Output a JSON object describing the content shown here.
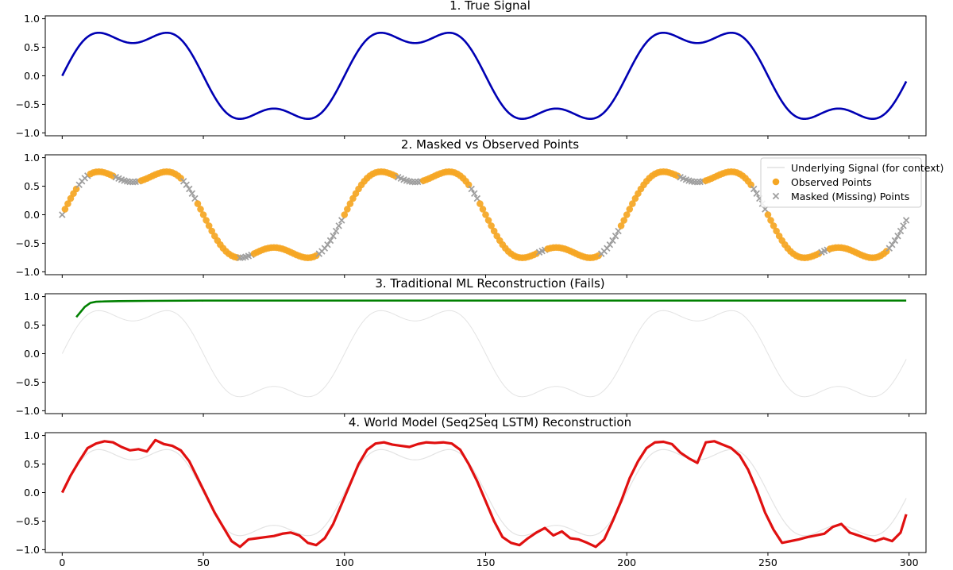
{
  "chart_data": [
    {
      "type": "line",
      "title": "1. True Signal",
      "xlim": [
        -6,
        306
      ],
      "ylim": [
        -1.05,
        1.05
      ],
      "y_ticks": [
        1.0,
        0.5,
        0.0,
        -0.5,
        -1.0
      ],
      "y_tick_labels": [
        "1.0",
        "0.5",
        "0.0",
        "−0.5",
        "−1.0"
      ],
      "signal": "sin(2*pi*x/100) + 0.3*sin(6*pi*x/100), normalized to peak 0.92",
      "series": [
        {
          "color": "#0000b3",
          "x_range": [
            0,
            299
          ],
          "kind": "true-signal"
        }
      ],
      "key_points": [
        [
          0,
          0.0
        ],
        [
          12,
          0.92
        ],
        [
          25,
          0.71
        ],
        [
          37,
          0.92
        ],
        [
          62,
          -0.92
        ],
        [
          75,
          -0.71
        ],
        [
          87,
          -0.92
        ],
        [
          112,
          0.92
        ],
        [
          125,
          0.71
        ],
        [
          137,
          0.92
        ],
        [
          162,
          -0.92
        ],
        [
          175,
          -0.71
        ],
        [
          187,
          -0.92
        ],
        [
          212,
          0.92
        ],
        [
          225,
          0.71
        ],
        [
          237,
          0.92
        ],
        [
          262,
          -0.92
        ],
        [
          275,
          -0.71
        ],
        [
          287,
          -0.92
        ],
        [
          299,
          0.0
        ]
      ]
    },
    {
      "type": "scatter",
      "title": "2. Masked vs Observed Points",
      "xlim": [
        -6,
        306
      ],
      "ylim": [
        -1.05,
        1.05
      ],
      "y_ticks": [
        1.0,
        0.5,
        0.0,
        -0.5,
        -1.0
      ],
      "y_tick_labels": [
        "1.0",
        "0.5",
        "0.0",
        "−0.5",
        "−1.0"
      ],
      "series": [
        {
          "name": "Underlying Signal (for context)",
          "color": "#d9d9d9",
          "kind": "line"
        },
        {
          "name": "Observed Points",
          "color": "#f5a623",
          "kind": "observed"
        },
        {
          "name": "Masked (Missing) Points",
          "color": "#9e9e9e",
          "kind": "masked"
        }
      ],
      "observed_x_ranges": [
        [
          1,
          5
        ],
        [
          10,
          18
        ],
        [
          28,
          42
        ],
        [
          48,
          62
        ],
        [
          68,
          90
        ],
        [
          100,
          118
        ],
        [
          128,
          144
        ],
        [
          148,
          168
        ],
        [
          172,
          190
        ],
        [
          198,
          218
        ],
        [
          228,
          244
        ],
        [
          250,
          268
        ],
        [
          272,
          292
        ]
      ],
      "masked_x_ranges": [
        [
          0,
          0
        ],
        [
          6,
          9
        ],
        [
          19,
          27
        ],
        [
          43,
          47
        ],
        [
          63,
          67
        ],
        [
          91,
          99
        ],
        [
          119,
          127
        ],
        [
          145,
          147
        ],
        [
          169,
          171
        ],
        [
          191,
          197
        ],
        [
          219,
          227
        ],
        [
          245,
          249
        ],
        [
          269,
          271
        ],
        [
          293,
          299
        ]
      ],
      "legend": "top-right"
    },
    {
      "type": "line",
      "title": "3. Traditional ML Reconstruction (Fails)",
      "xlim": [
        -6,
        306
      ],
      "ylim": [
        -1.05,
        1.05
      ],
      "y_ticks": [
        1.0,
        0.5,
        0.0,
        -0.5,
        -1.0
      ],
      "y_tick_labels": [
        "1.0",
        "0.5",
        "0.0",
        "−0.5",
        "−1.0"
      ],
      "series": [
        {
          "color": "#e3e3e3",
          "kind": "background-signal"
        },
        {
          "color": "#008000",
          "kind": "ml-prediction"
        }
      ],
      "ml_prediction": {
        "x": [
          5,
          8,
          10,
          12,
          15,
          20,
          30,
          50,
          100,
          200,
          299
        ],
        "y": [
          0.64,
          0.82,
          0.89,
          0.91,
          0.915,
          0.92,
          0.925,
          0.93,
          0.93,
          0.93,
          0.93
        ]
      }
    },
    {
      "type": "line",
      "title": "4. World Model (Seq2Seq LSTM) Reconstruction",
      "xlim": [
        -6,
        306
      ],
      "ylim": [
        -1.05,
        1.05
      ],
      "y_ticks": [
        1.0,
        0.5,
        0.0,
        -0.5,
        -1.0
      ],
      "y_tick_labels": [
        "1.0",
        "0.5",
        "0.0",
        "−0.5",
        "−1.0"
      ],
      "x_ticks": [
        0,
        50,
        100,
        150,
        200,
        250,
        300
      ],
      "x_tick_labels": [
        "0",
        "50",
        "100",
        "150",
        "200",
        "250",
        "300"
      ],
      "series": [
        {
          "color": "#e3e3e3",
          "kind": "background-signal"
        },
        {
          "color": "#e01010",
          "kind": "lstm-reconstruction"
        }
      ],
      "lstm_prediction": {
        "x": [
          0,
          3,
          6,
          9,
          12,
          15,
          18,
          21,
          24,
          27,
          30,
          33,
          36,
          39,
          42,
          45,
          48,
          51,
          54,
          57,
          60,
          63,
          66,
          69,
          72,
          75,
          78,
          81,
          84,
          87,
          90,
          93,
          96,
          99,
          102,
          105,
          108,
          111,
          114,
          117,
          120,
          123,
          126,
          129,
          132,
          135,
          138,
          141,
          144,
          147,
          150,
          153,
          156,
          159,
          162,
          165,
          168,
          171,
          174,
          177,
          180,
          183,
          186,
          189,
          192,
          195,
          198,
          201,
          204,
          207,
          210,
          213,
          216,
          219,
          222,
          225,
          228,
          231,
          234,
          237,
          240,
          243,
          246,
          249,
          252,
          255,
          258,
          261,
          264,
          267,
          270,
          273,
          276,
          279,
          282,
          285,
          288,
          291,
          294,
          297,
          299
        ],
        "y": [
          0.0,
          0.3,
          0.55,
          0.78,
          0.86,
          0.9,
          0.88,
          0.8,
          0.74,
          0.76,
          0.72,
          0.92,
          0.85,
          0.82,
          0.74,
          0.55,
          0.25,
          -0.05,
          -0.35,
          -0.6,
          -0.85,
          -0.95,
          -0.82,
          -0.8,
          -0.78,
          -0.76,
          -0.72,
          -0.7,
          -0.75,
          -0.88,
          -0.92,
          -0.8,
          -0.55,
          -0.2,
          0.15,
          0.5,
          0.75,
          0.86,
          0.88,
          0.84,
          0.82,
          0.8,
          0.85,
          0.88,
          0.87,
          0.88,
          0.86,
          0.75,
          0.5,
          0.2,
          -0.15,
          -0.5,
          -0.78,
          -0.88,
          -0.92,
          -0.8,
          -0.7,
          -0.62,
          -0.75,
          -0.68,
          -0.8,
          -0.82,
          -0.88,
          -0.95,
          -0.82,
          -0.5,
          -0.15,
          0.25,
          0.55,
          0.78,
          0.88,
          0.89,
          0.85,
          0.7,
          0.6,
          0.52,
          0.88,
          0.9,
          0.84,
          0.78,
          0.65,
          0.4,
          0.05,
          -0.35,
          -0.65,
          -0.88,
          -0.85,
          -0.82,
          -0.78,
          -0.75,
          -0.72,
          -0.6,
          -0.55,
          -0.7,
          -0.75,
          -0.8,
          -0.85,
          -0.8,
          -0.85,
          -0.7,
          -0.38
        ]
      }
    }
  ]
}
